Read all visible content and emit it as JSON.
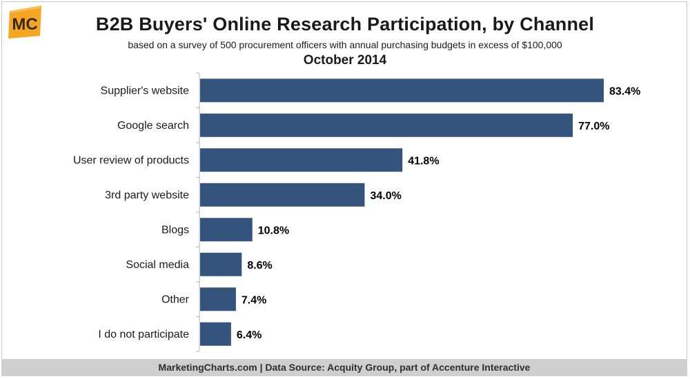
{
  "brand": {
    "logo_text": "MC",
    "logo_color": "#f5a623"
  },
  "header": {
    "title": "B2B Buyers' Online Research Participation, by Channel",
    "subtitle": "based on a survey of 500 procurement officers with annual purchasing budgets in excess of $100,000",
    "date": "October 2014"
  },
  "footer": {
    "source": "MarketingCharts.com | Data Source: Acquity Group, part of Accenture Interactive"
  },
  "chart_data": {
    "type": "bar",
    "orientation": "horizontal",
    "title": "B2B Buyers' Online Research Participation, by Channel",
    "categories": [
      "Supplier's website",
      "Google search",
      "User review of products",
      "3rd party website",
      "Blogs",
      "Social media",
      "Other",
      "I do not participate"
    ],
    "values": [
      83.4,
      77.0,
      41.8,
      34.0,
      10.8,
      8.6,
      7.4,
      6.4
    ],
    "value_labels": [
      "83.4%",
      "77.0%",
      "41.8%",
      "34.0%",
      "10.8%",
      "8.6%",
      "7.4%",
      "6.4%"
    ],
    "unit": "%",
    "xlim": [
      0,
      100
    ],
    "bar_color": "#34547e",
    "grid": false,
    "legend": "none"
  }
}
